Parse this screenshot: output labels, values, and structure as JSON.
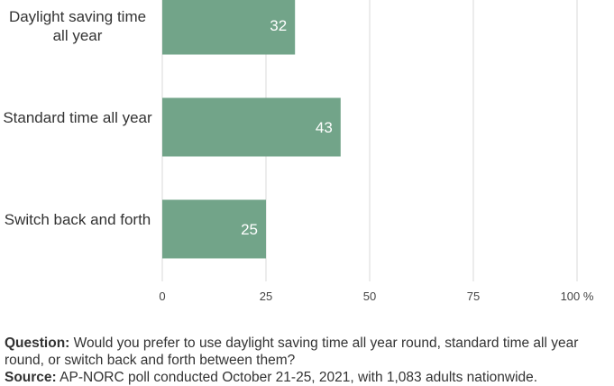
{
  "chart_data": {
    "type": "bar",
    "orientation": "horizontal",
    "categories": [
      "Daylight saving time all year",
      "Standard time all year",
      "Switch back and forth"
    ],
    "values": [
      32,
      43,
      25
    ],
    "xlim": [
      0,
      100
    ],
    "xticks": [
      "0",
      "25",
      "50",
      "75",
      "100 %"
    ],
    "grid": true,
    "bar_color": "#72a489",
    "value_label_color": "#ffffff"
  },
  "footer": {
    "question_label": "Question:",
    "question_text": "Would you prefer to use daylight saving time all year round, standard time all year round, or switch back and forth between them?",
    "source_label": "Source:",
    "source_text": "AP-NORC poll conducted October 21-25, 2021, with 1,083 adults nationwide."
  }
}
